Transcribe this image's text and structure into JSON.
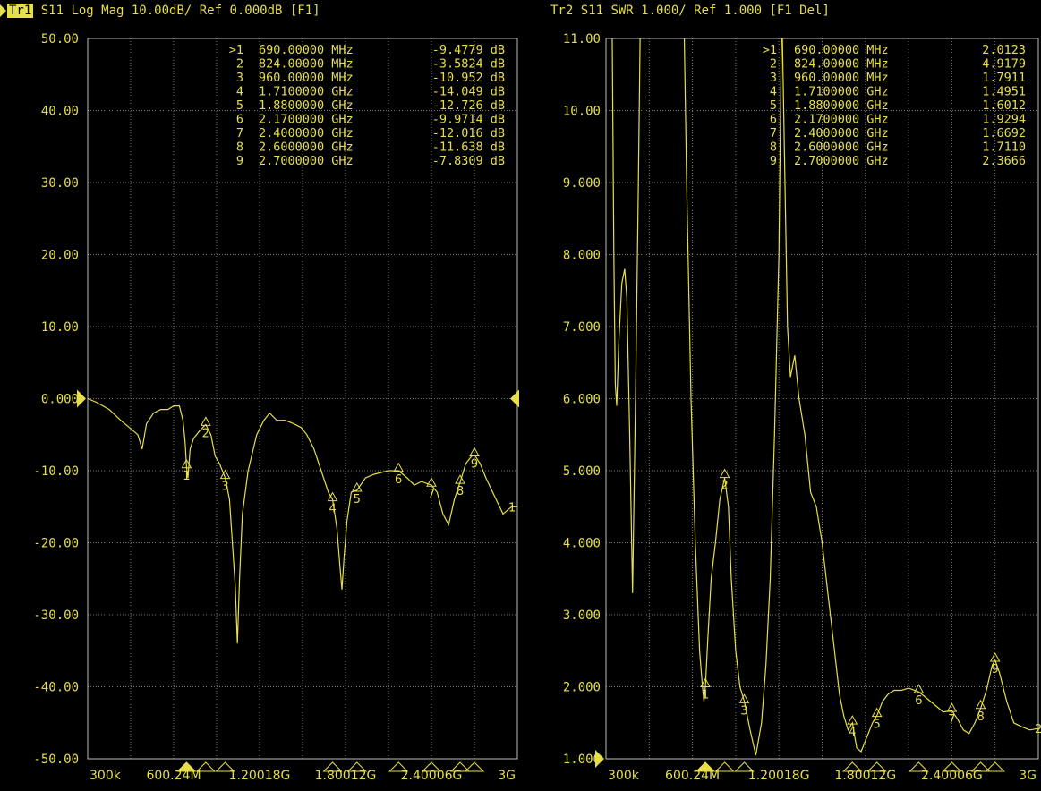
{
  "colors": {
    "trace": "#e6df4a",
    "grid": "#7a7a7a",
    "background": "#000000"
  },
  "traces": [
    {
      "id": "tr1",
      "header_tag": "Tr1",
      "header_text": " S11 Log Mag 10.00dB/ Ref 0.000dB [F1]",
      "active": true,
      "y_ticks": [
        "50.00",
        "40.00",
        "30.00",
        "20.00",
        "10.00",
        "0.000",
        "-10.00",
        "-20.00",
        "-30.00",
        "-40.00",
        "-50.00"
      ],
      "y_range": [
        -50,
        50
      ],
      "ref_value": 0,
      "x_ticks": [
        "300k",
        "600.24M",
        "1.20018G",
        "1.80012G",
        "2.40006G",
        "3G"
      ],
      "x_range_mhz": [
        0.3,
        3000
      ],
      "markers": [
        {
          "num": "1",
          "sel": ">1",
          "freq": "690.00000 MHz",
          "val": "-9.4779 dB"
        },
        {
          "num": "2",
          "sel": "2",
          "freq": "824.00000 MHz",
          "val": "-3.5824 dB"
        },
        {
          "num": "3",
          "sel": "3",
          "freq": "960.00000 MHz",
          "val": "-10.952 dB"
        },
        {
          "num": "4",
          "sel": "4",
          "freq": "1.7100000 GHz",
          "val": "-14.049 dB"
        },
        {
          "num": "5",
          "sel": "5",
          "freq": "1.8800000 GHz",
          "val": "-12.726 dB"
        },
        {
          "num": "6",
          "sel": "6",
          "freq": "2.1700000 GHz",
          "val": "-9.9714 dB"
        },
        {
          "num": "7",
          "sel": "7",
          "freq": "2.4000000 GHz",
          "val": "-12.016 dB"
        },
        {
          "num": "8",
          "sel": "8",
          "freq": "2.6000000 GHz",
          "val": "-11.638 dB"
        },
        {
          "num": "9",
          "sel": "9",
          "freq": "2.7000000 GHz",
          "val": "-7.8309 dB"
        }
      ],
      "marker_freqs_mhz": [
        690,
        824,
        960,
        1710,
        1880,
        2170,
        2400,
        2600,
        2700
      ],
      "marker_vals": [
        -9.4779,
        -3.5824,
        -10.952,
        -14.049,
        -12.726,
        -9.9714,
        -12.016,
        -11.638,
        -7.8309
      ],
      "trace_number_label": "1",
      "trace_points": [
        [
          0.3,
          0
        ],
        [
          60,
          -0.5
        ],
        [
          150,
          -1.5
        ],
        [
          230,
          -3
        ],
        [
          290,
          -4
        ],
        [
          350,
          -5
        ],
        [
          380,
          -7
        ],
        [
          410,
          -3.5
        ],
        [
          460,
          -2
        ],
        [
          510,
          -1.5
        ],
        [
          560,
          -1.5
        ],
        [
          600,
          -1
        ],
        [
          640,
          -1
        ],
        [
          665,
          -3
        ],
        [
          680,
          -6
        ],
        [
          690,
          -9.5
        ],
        [
          700,
          -11
        ],
        [
          715,
          -7
        ],
        [
          740,
          -5.5
        ],
        [
          780,
          -4.5
        ],
        [
          824,
          -3.6
        ],
        [
          860,
          -5
        ],
        [
          890,
          -8
        ],
        [
          920,
          -9
        ],
        [
          960,
          -11
        ],
        [
          990,
          -14
        ],
        [
          1010,
          -20
        ],
        [
          1030,
          -26
        ],
        [
          1045,
          -34
        ],
        [
          1060,
          -25
        ],
        [
          1080,
          -16
        ],
        [
          1120,
          -10
        ],
        [
          1180,
          -5
        ],
        [
          1230,
          -3
        ],
        [
          1270,
          -2
        ],
        [
          1320,
          -3
        ],
        [
          1380,
          -3
        ],
        [
          1440,
          -3.5
        ],
        [
          1490,
          -4
        ],
        [
          1530,
          -5
        ],
        [
          1580,
          -7
        ],
        [
          1630,
          -10
        ],
        [
          1680,
          -13
        ],
        [
          1710,
          -14
        ],
        [
          1740,
          -18
        ],
        [
          1760,
          -23
        ],
        [
          1775,
          -26.5
        ],
        [
          1790,
          -22
        ],
        [
          1810,
          -17
        ],
        [
          1840,
          -13
        ],
        [
          1880,
          -12.7
        ],
        [
          1940,
          -11
        ],
        [
          2000,
          -10.5
        ],
        [
          2100,
          -10
        ],
        [
          2170,
          -10
        ],
        [
          2230,
          -11
        ],
        [
          2280,
          -12
        ],
        [
          2330,
          -11.5
        ],
        [
          2400,
          -12
        ],
        [
          2440,
          -13
        ],
        [
          2480,
          -16
        ],
        [
          2520,
          -17.5
        ],
        [
          2560,
          -14
        ],
        [
          2600,
          -11.6
        ],
        [
          2640,
          -9
        ],
        [
          2680,
          -8
        ],
        [
          2700,
          -7.8
        ],
        [
          2740,
          -9
        ],
        [
          2780,
          -11
        ],
        [
          2840,
          -13.5
        ],
        [
          2900,
          -16
        ],
        [
          2960,
          -15
        ],
        [
          3000,
          -15
        ]
      ]
    },
    {
      "id": "tr2",
      "header_tag": "Tr2",
      "header_text": " S11 SWR 1.000/ Ref 1.000 [F1 Del]",
      "active": false,
      "y_ticks": [
        "11.00",
        "10.00",
        "9.000",
        "8.000",
        "7.000",
        "6.000",
        "5.000",
        "4.000",
        "3.000",
        "2.000",
        "1.000"
      ],
      "y_range": [
        1,
        11
      ],
      "ref_value": 1,
      "x_ticks": [
        "300k",
        "600.24M",
        "1.20018G",
        "1.80012G",
        "2.40006G",
        "3G"
      ],
      "x_range_mhz": [
        0.3,
        3000
      ],
      "markers": [
        {
          "num": "1",
          "sel": ">1",
          "freq": "690.00000 MHz",
          "val": "2.0123"
        },
        {
          "num": "2",
          "sel": "2",
          "freq": "824.00000 MHz",
          "val": "4.9179"
        },
        {
          "num": "3",
          "sel": "3",
          "freq": "960.00000 MHz",
          "val": "1.7911"
        },
        {
          "num": "4",
          "sel": "4",
          "freq": "1.7100000 GHz",
          "val": "1.4951"
        },
        {
          "num": "5",
          "sel": "5",
          "freq": "1.8800000 GHz",
          "val": "1.6012"
        },
        {
          "num": "6",
          "sel": "6",
          "freq": "2.1700000 GHz",
          "val": "1.9294"
        },
        {
          "num": "7",
          "sel": "7",
          "freq": "2.4000000 GHz",
          "val": "1.6692"
        },
        {
          "num": "8",
          "sel": "8",
          "freq": "2.6000000 GHz",
          "val": "1.7110"
        },
        {
          "num": "9",
          "sel": "9",
          "freq": "2.7000000 GHz",
          "val": "2.3666"
        }
      ],
      "marker_freqs_mhz": [
        690,
        824,
        960,
        1710,
        1880,
        2170,
        2400,
        2600,
        2700
      ],
      "marker_vals": [
        2.0123,
        4.9179,
        1.7911,
        1.4951,
        1.6012,
        1.9294,
        1.6692,
        1.711,
        2.3666
      ],
      "trace_number_label": "2",
      "trace_points": [
        [
          0.3,
          12
        ],
        [
          40,
          12
        ],
        [
          55,
          8
        ],
        [
          65,
          6.2
        ],
        [
          75,
          5.9
        ],
        [
          90,
          6.8
        ],
        [
          110,
          7.6
        ],
        [
          130,
          7.8
        ],
        [
          145,
          7.4
        ],
        [
          165,
          5.5
        ],
        [
          185,
          3.3
        ],
        [
          205,
          6
        ],
        [
          225,
          9
        ],
        [
          240,
          11.5
        ],
        [
          540,
          11.5
        ],
        [
          560,
          9
        ],
        [
          590,
          6
        ],
        [
          620,
          4
        ],
        [
          650,
          2.5
        ],
        [
          670,
          2
        ],
        [
          680,
          1.8
        ],
        [
          690,
          2
        ],
        [
          705,
          2.6
        ],
        [
          730,
          3.5
        ],
        [
          760,
          4
        ],
        [
          790,
          4.6
        ],
        [
          824,
          4.9
        ],
        [
          850,
          4.5
        ],
        [
          870,
          3.5
        ],
        [
          900,
          2.5
        ],
        [
          930,
          2
        ],
        [
          960,
          1.8
        ],
        [
          1000,
          1.4
        ],
        [
          1040,
          1.05
        ],
        [
          1080,
          1.5
        ],
        [
          1110,
          2.3
        ],
        [
          1140,
          3.5
        ],
        [
          1170,
          5.5
        ],
        [
          1200,
          8
        ],
        [
          1220,
          11.5
        ],
        [
          1260,
          7
        ],
        [
          1280,
          6.3
        ],
        [
          1310,
          6.6
        ],
        [
          1340,
          6
        ],
        [
          1380,
          5.5
        ],
        [
          1420,
          4.7
        ],
        [
          1460,
          4.5
        ],
        [
          1500,
          4
        ],
        [
          1540,
          3.3
        ],
        [
          1580,
          2.6
        ],
        [
          1620,
          1.9
        ],
        [
          1650,
          1.6
        ],
        [
          1680,
          1.4
        ],
        [
          1710,
          1.5
        ],
        [
          1740,
          1.15
        ],
        [
          1770,
          1.1
        ],
        [
          1810,
          1.3
        ],
        [
          1850,
          1.5
        ],
        [
          1880,
          1.6
        ],
        [
          1920,
          1.8
        ],
        [
          1960,
          1.9
        ],
        [
          2000,
          1.95
        ],
        [
          2050,
          1.95
        ],
        [
          2100,
          1.98
        ],
        [
          2170,
          1.93
        ],
        [
          2220,
          1.85
        ],
        [
          2280,
          1.75
        ],
        [
          2340,
          1.65
        ],
        [
          2400,
          1.67
        ],
        [
          2440,
          1.55
        ],
        [
          2480,
          1.4
        ],
        [
          2520,
          1.35
        ],
        [
          2560,
          1.5
        ],
        [
          2600,
          1.7
        ],
        [
          2640,
          1.95
        ],
        [
          2680,
          2.3
        ],
        [
          2700,
          2.37
        ],
        [
          2730,
          2.2
        ],
        [
          2780,
          1.8
        ],
        [
          2830,
          1.5
        ],
        [
          2880,
          1.45
        ],
        [
          2940,
          1.4
        ],
        [
          3000,
          1.42
        ]
      ]
    }
  ]
}
